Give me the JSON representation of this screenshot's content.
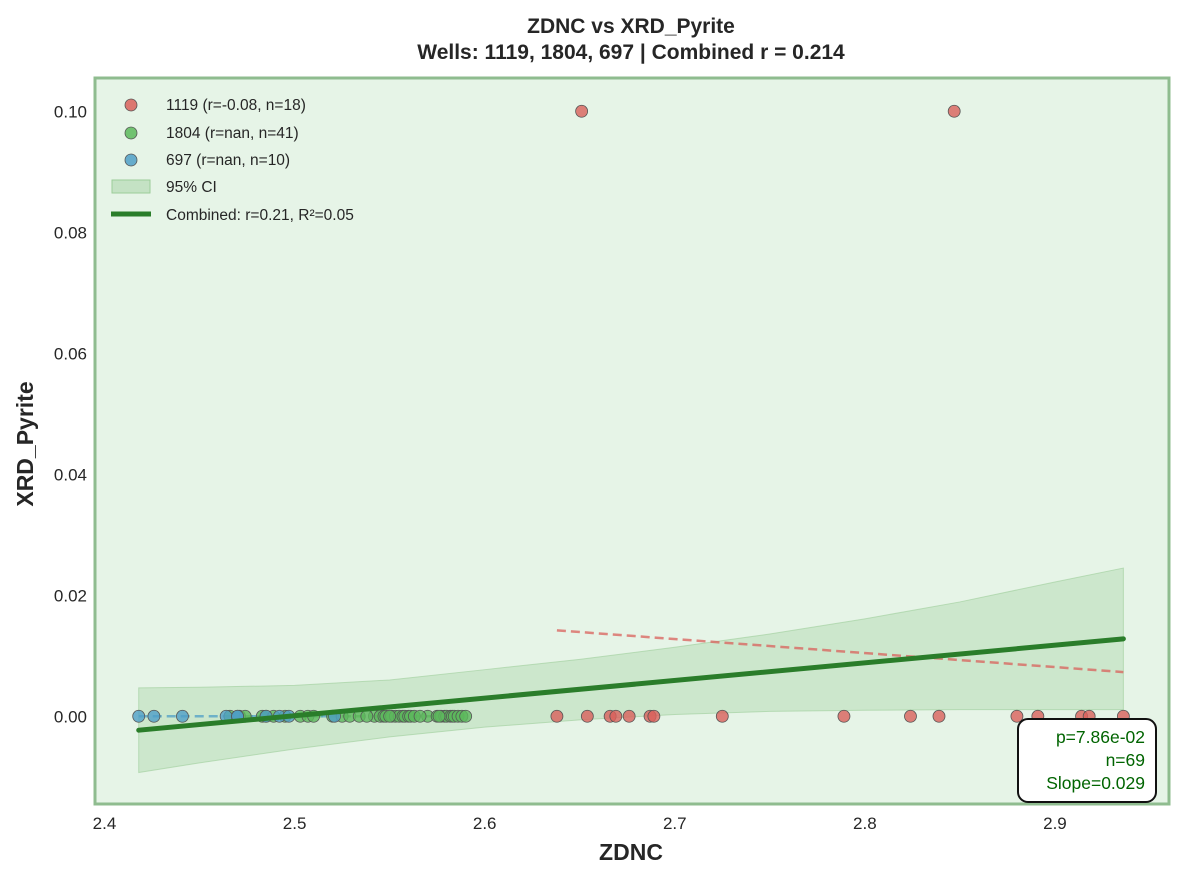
{
  "chart_data": {
    "type": "scatter",
    "title": "ZDNC vs XRD_Pyrite",
    "subtitle": "Wells: 1119, 1804, 697 | Combined r = 0.214",
    "xlabel": "ZDNC",
    "ylabel": "XRD_Pyrite",
    "xlim": [
      2.395,
      2.96
    ],
    "ylim": [
      -0.0145,
      0.1055
    ],
    "xticks": [
      2.4,
      2.5,
      2.6,
      2.7,
      2.8,
      2.9
    ],
    "xtick_labels": [
      "2.4",
      "2.5",
      "2.6",
      "2.7",
      "2.8",
      "2.9"
    ],
    "yticks": [
      0.0,
      0.02,
      0.04,
      0.06,
      0.08,
      0.1
    ],
    "ytick_labels": [
      "0.00",
      "0.02",
      "0.04",
      "0.06",
      "0.08",
      "0.10"
    ],
    "grid": false,
    "legend_position": "top-left",
    "background": "#e6f4e7",
    "frame_color": "#8fbc8f",
    "series": [
      {
        "name": "1119 (r=-0.08, n=18)",
        "color": "#d9605b",
        "x": [
          2.638,
          2.654,
          2.666,
          2.669,
          2.676,
          2.687,
          2.689,
          2.725,
          2.789,
          2.824,
          2.839,
          2.847,
          2.651,
          2.88,
          2.891,
          2.914,
          2.918,
          2.936
        ],
        "y": [
          0,
          0,
          0,
          0,
          0,
          0,
          0,
          0,
          0,
          0,
          0,
          0.1,
          0.1,
          0,
          0,
          0,
          0,
          0
        ],
        "trend": {
          "x": [
            2.638,
            2.936
          ],
          "y": [
            0.0142,
            0.0073
          ]
        }
      },
      {
        "name": "1804 (r=nan, n=41)",
        "color": "#5cb85c",
        "x": [
          2.466,
          2.471,
          2.474,
          2.483,
          2.485,
          2.489,
          2.495,
          2.503,
          2.507,
          2.51,
          2.52,
          2.525,
          2.529,
          2.534,
          2.542,
          2.545,
          2.547,
          2.548,
          2.551,
          2.553,
          2.555,
          2.557,
          2.558,
          2.56,
          2.561,
          2.563,
          2.57,
          2.575,
          2.577,
          2.579,
          2.58,
          2.582,
          2.583,
          2.584,
          2.586,
          2.588,
          2.59,
          2.576,
          2.566,
          2.55,
          2.538
        ],
        "y": [
          0,
          0,
          0,
          0,
          0,
          0,
          0,
          0,
          0,
          0,
          0,
          0,
          0,
          0,
          0,
          0,
          0,
          0,
          0,
          0,
          0,
          0,
          0,
          0,
          0,
          0,
          0,
          0,
          0,
          0,
          0,
          0,
          0,
          0,
          0,
          0,
          0,
          0,
          0,
          0,
          0
        ],
        "trend": {
          "x": [
            2.466,
            2.59
          ],
          "y": [
            0,
            0
          ]
        }
      },
      {
        "name": "697 (r=nan, n=10)",
        "color": "#4f9fc7",
        "x": [
          2.418,
          2.426,
          2.441,
          2.464,
          2.47,
          2.485,
          2.492,
          2.497,
          2.521,
          2.47
        ],
        "y": [
          0,
          0,
          0,
          0,
          0,
          0,
          0,
          0,
          0,
          0
        ],
        "trend": {
          "x": [
            2.418,
            2.521
          ],
          "y": [
            0,
            0
          ]
        }
      }
    ],
    "combined_fit": {
      "name": "Combined: r=0.21, R²=0.05",
      "color": "#2a7d2a",
      "x": [
        2.418,
        2.936
      ],
      "y": [
        -0.0023,
        0.0128
      ]
    },
    "confidence_band": {
      "name": "95% CI",
      "color": "#9ccd9a",
      "x": [
        2.418,
        2.45,
        2.5,
        2.55,
        2.6,
        2.65,
        2.7,
        2.75,
        2.8,
        2.85,
        2.9,
        2.936
      ],
      "lower": [
        -0.0093,
        -0.0077,
        -0.0054,
        -0.0034,
        -0.0018,
        -0.0006,
        0.0003,
        0.0008,
        0.001,
        0.0011,
        0.0011,
        0.0011
      ],
      "upper": [
        0.0047,
        0.0048,
        0.0051,
        0.006,
        0.0077,
        0.0094,
        0.0114,
        0.0136,
        0.0161,
        0.0189,
        0.0222,
        0.0245
      ]
    },
    "stats_box": {
      "p": "p=7.86e-02",
      "n": "n=69",
      "slope": "Slope=0.029"
    }
  }
}
